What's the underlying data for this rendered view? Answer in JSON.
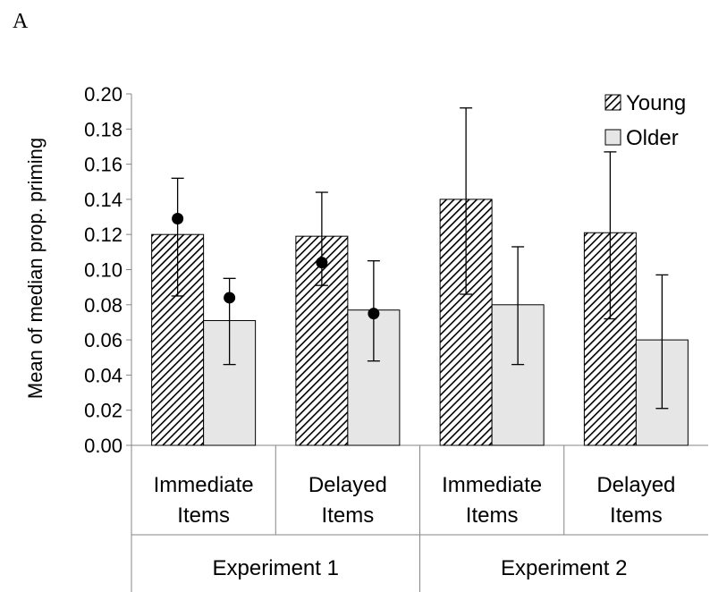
{
  "panel_label": "A",
  "chart_data": {
    "type": "bar",
    "ylabel": "Mean of median prop. priming",
    "ylim": [
      0,
      0.2
    ],
    "yticks": [
      "0.00",
      "0.02",
      "0.04",
      "0.06",
      "0.08",
      "0.10",
      "0.12",
      "0.14",
      "0.16",
      "0.18",
      "0.20"
    ],
    "grid": false,
    "legend_position": "top-right",
    "groups": [
      {
        "label": "Experiment 1",
        "categories": [
          [
            "Immediate",
            "Items"
          ],
          [
            "Delayed",
            "Items"
          ]
        ]
      },
      {
        "label": "Experiment 2",
        "categories": [
          [
            "Immediate",
            "Items"
          ],
          [
            "Delayed",
            "Items"
          ]
        ]
      }
    ],
    "categories": [
      "Immediate Items",
      "Delayed Items",
      "Immediate Items",
      "Delayed Items"
    ],
    "series": [
      {
        "name": "Young",
        "pattern": "diagonal-hatch",
        "color": "#000000",
        "values": [
          0.12,
          0.119,
          0.14,
          0.121
        ],
        "err_low": [
          0.085,
          0.091,
          0.086,
          0.072
        ],
        "err_high": [
          0.152,
          0.144,
          0.192,
          0.167
        ],
        "dots": [
          0.129,
          0.104,
          null,
          null
        ]
      },
      {
        "name": "Older",
        "pattern": "solid",
        "color": "#e6e6e6",
        "values": [
          0.071,
          0.077,
          0.08,
          0.06
        ],
        "err_low": [
          0.046,
          0.048,
          0.046,
          0.021
        ],
        "err_high": [
          0.095,
          0.105,
          0.113,
          0.097
        ],
        "dots": [
          0.084,
          0.075,
          null,
          null
        ]
      }
    ]
  }
}
